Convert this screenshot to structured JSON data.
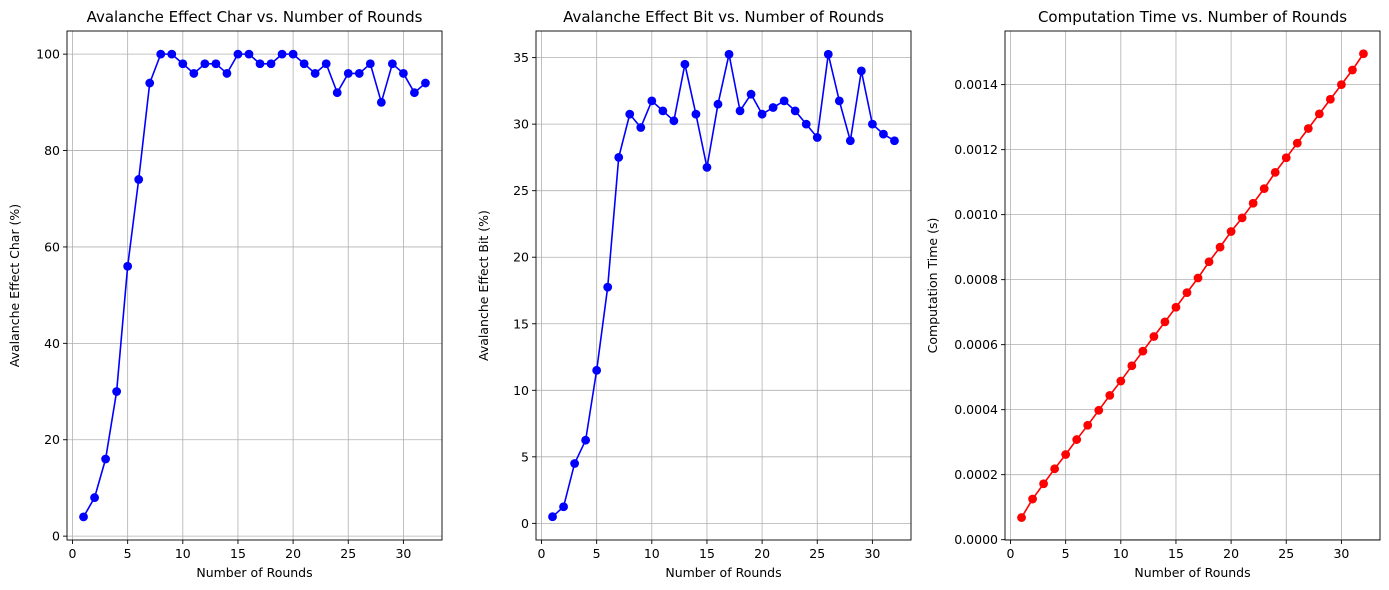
{
  "chart_data": [
    {
      "type": "line",
      "title": "Avalanche Effect Char vs. Number of Rounds",
      "xlabel": "Number of Rounds",
      "ylabel": "Avalanche Effect Char (%)",
      "xlim": [
        -0.5,
        33.5
      ],
      "ylim": [
        -0.8,
        104.8
      ],
      "xticks": [
        0,
        5,
        10,
        15,
        20,
        25,
        30
      ],
      "xtick_labels": [
        "0",
        "5",
        "10",
        "15",
        "20",
        "25",
        "30"
      ],
      "yticks": [
        0,
        20,
        40,
        60,
        80,
        100
      ],
      "ytick_labels": [
        "0",
        "20",
        "40",
        "60",
        "80",
        "100"
      ],
      "grid": true,
      "color": "#0000ff",
      "marker": "circle",
      "x": [
        1,
        2,
        3,
        4,
        5,
        6,
        7,
        8,
        9,
        10,
        11,
        12,
        13,
        14,
        15,
        16,
        17,
        18,
        19,
        20,
        21,
        22,
        23,
        24,
        25,
        26,
        27,
        28,
        29,
        30,
        31,
        32
      ],
      "y": [
        4,
        8,
        16,
        30,
        56,
        74,
        94,
        100,
        100,
        98,
        96,
        98,
        98,
        96,
        100,
        100,
        98,
        98,
        100,
        100,
        98,
        96,
        98,
        92,
        96,
        96,
        98,
        90,
        98,
        96,
        92,
        94
      ]
    },
    {
      "type": "line",
      "title": "Avalanche Effect Bit vs. Number of Rounds",
      "xlabel": "Number of Rounds",
      "ylabel": "Avalanche Effect Bit (%)",
      "xlim": [
        -0.5,
        33.5
      ],
      "ylim": [
        -1.25,
        37.0
      ],
      "xticks": [
        0,
        5,
        10,
        15,
        20,
        25,
        30
      ],
      "xtick_labels": [
        "0",
        "5",
        "10",
        "15",
        "20",
        "25",
        "30"
      ],
      "yticks": [
        0,
        5,
        10,
        15,
        20,
        25,
        30,
        35
      ],
      "ytick_labels": [
        "0",
        "5",
        "10",
        "15",
        "20",
        "25",
        "30",
        "35"
      ],
      "grid": true,
      "color": "#0000ff",
      "marker": "circle",
      "x": [
        1,
        2,
        3,
        4,
        5,
        6,
        7,
        8,
        9,
        10,
        11,
        12,
        13,
        14,
        15,
        16,
        17,
        18,
        19,
        20,
        21,
        22,
        23,
        24,
        25,
        26,
        27,
        28,
        29,
        30,
        31,
        32
      ],
      "y": [
        0.5,
        1.25,
        4.5,
        6.25,
        11.5,
        17.75,
        27.5,
        30.75,
        29.75,
        31.75,
        31.0,
        30.25,
        34.5,
        30.75,
        26.75,
        31.5,
        35.25,
        31.0,
        32.25,
        30.75,
        31.25,
        31.75,
        31.0,
        30.0,
        29.0,
        35.25,
        31.75,
        28.75,
        34.0,
        30.0,
        29.25,
        28.75
      ]
    },
    {
      "type": "line",
      "title": "Computation Time vs. Number of Rounds",
      "xlabel": "Number of Rounds",
      "ylabel": "Computation Time (s)",
      "xlim": [
        -0.5,
        33.5
      ],
      "ylim": [
        -1e-06,
        0.001565
      ],
      "xticks": [
        0,
        5,
        10,
        15,
        20,
        25,
        30
      ],
      "xtick_labels": [
        "0",
        "5",
        "10",
        "15",
        "20",
        "25",
        "30"
      ],
      "yticks": [
        0,
        0.0002,
        0.0004,
        0.0006,
        0.0008,
        0.001,
        0.0012,
        0.0014
      ],
      "ytick_labels": [
        "0.0000",
        "0.0002",
        "0.0004",
        "0.0006",
        "0.0008",
        "0.0010",
        "0.0012",
        "0.0014"
      ],
      "grid": true,
      "color": "#ff0000",
      "marker": "circle",
      "x": [
        1,
        2,
        3,
        4,
        5,
        6,
        7,
        8,
        9,
        10,
        11,
        12,
        13,
        14,
        15,
        16,
        17,
        18,
        19,
        20,
        21,
        22,
        23,
        24,
        25,
        26,
        27,
        28,
        29,
        30,
        31,
        32
      ],
      "y": [
        6.8e-05,
        0.000125,
        0.000172,
        0.000218,
        0.000262,
        0.000308,
        0.000352,
        0.000398,
        0.000444,
        0.000488,
        0.000535,
        0.00058,
        0.000625,
        0.00067,
        0.000715,
        0.00076,
        0.000805,
        0.000855,
        0.0009,
        0.000948,
        0.00099,
        0.001035,
        0.00108,
        0.00113,
        0.001175,
        0.00122,
        0.001265,
        0.00131,
        0.001355,
        0.0014,
        0.001445,
        0.001495
      ]
    }
  ]
}
